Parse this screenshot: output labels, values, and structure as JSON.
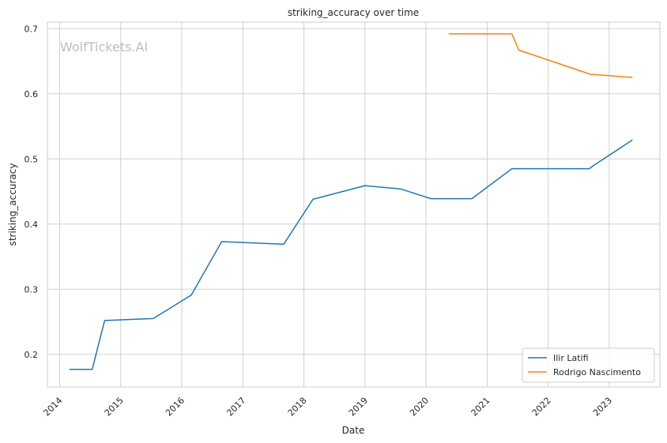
{
  "chart_data": {
    "type": "line",
    "title": "striking_accuracy over time",
    "xlabel": "Date",
    "ylabel": "striking_accuracy",
    "watermark": "WolfTickets.AI",
    "x_ticks": [
      "2014",
      "2015",
      "2016",
      "2017",
      "2018",
      "2019",
      "2020",
      "2021",
      "2022",
      "2023"
    ],
    "y_ticks": [
      "0.2",
      "0.3",
      "0.4",
      "0.5",
      "0.6",
      "0.7"
    ],
    "xlim": [
      "2013-10-20",
      "2023-10-31"
    ],
    "ylim": [
      0.15,
      0.71
    ],
    "grid": true,
    "legend_position": "lower-right",
    "series": [
      {
        "name": "Ilir Latifi",
        "color": "#1f77b4",
        "points": [
          [
            "2014-03-01",
            0.177
          ],
          [
            "2014-07-15",
            0.177
          ],
          [
            "2014-09-27",
            0.252
          ],
          [
            "2015-07-15",
            0.255
          ],
          [
            "2016-02-27",
            0.291
          ],
          [
            "2016-08-27",
            0.373
          ],
          [
            "2017-09-02",
            0.369
          ],
          [
            "2018-02-24",
            0.438
          ],
          [
            "2019-01-01",
            0.459
          ],
          [
            "2019-08-01",
            0.454
          ],
          [
            "2020-02-01",
            0.439
          ],
          [
            "2020-10-01",
            0.439
          ],
          [
            "2021-05-29",
            0.485
          ],
          [
            "2022-09-04",
            0.485
          ],
          [
            "2022-09-30",
            0.49
          ],
          [
            "2023-05-20",
            0.529
          ]
        ]
      },
      {
        "name": "Rodrigo Nascimento",
        "color": "#ff7f0e",
        "points": [
          [
            "2020-05-16",
            0.692
          ],
          [
            "2021-05-29",
            0.692
          ],
          [
            "2021-07-10",
            0.667
          ],
          [
            "2022-09-10",
            0.63
          ],
          [
            "2023-05-20",
            0.625
          ]
        ]
      }
    ]
  }
}
